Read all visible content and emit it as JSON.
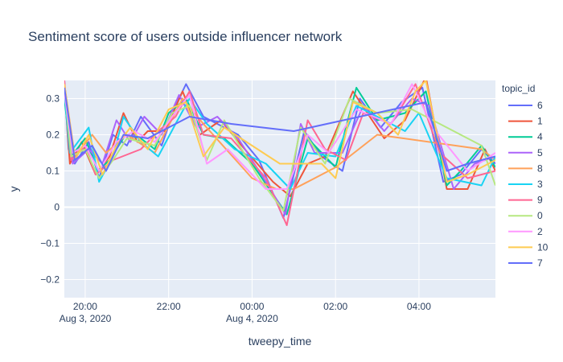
{
  "chart_data": {
    "type": "line",
    "title": "Sentiment score of users outside influencer network",
    "xlabel": "tweepy_time",
    "ylabel": "y",
    "x_range": [
      "2020-08-03 19:30",
      "2020-08-04 05:50"
    ],
    "ylim": [
      -0.25,
      0.35
    ],
    "x_ticks": [
      {
        "t": "2020-08-03 20:00",
        "label": "20:00",
        "date": "Aug 3, 2020"
      },
      {
        "t": "2020-08-03 22:00",
        "label": "22:00",
        "date": ""
      },
      {
        "t": "2020-08-04 00:00",
        "label": "00:00",
        "date": "Aug 4, 2020"
      },
      {
        "t": "2020-08-04 02:00",
        "label": "02:00",
        "date": ""
      },
      {
        "t": "2020-08-04 04:00",
        "label": "04:00",
        "date": ""
      }
    ],
    "y_ticks": [
      -0.2,
      -0.1,
      0,
      0.1,
      0.2,
      0.3
    ],
    "y_tick_labels": [
      "−0.2",
      "−0.1",
      "0",
      "0.1",
      "0.2",
      "0.3"
    ],
    "legend_title": "topic_id",
    "legend_position": "right",
    "grid": true,
    "series": [
      {
        "name": "6",
        "color": "#636efa",
        "points": [
          [
            "2020-08-03 19:30",
            0.35
          ],
          [
            "2020-08-03 19:36",
            0.16
          ],
          [
            "2020-08-03 19:45",
            0.12
          ],
          [
            "2020-08-03 20:05",
            0.18
          ],
          [
            "2020-08-03 20:20",
            0.08
          ],
          [
            "2020-08-03 20:40",
            0.2
          ],
          [
            "2020-08-03 21:00",
            0.17
          ],
          [
            "2020-08-03 21:20",
            0.25
          ],
          [
            "2020-08-03 21:50",
            0.17
          ],
          [
            "2020-08-03 22:10",
            0.28
          ],
          [
            "2020-08-03 22:25",
            0.34
          ],
          [
            "2020-08-03 22:50",
            0.25
          ],
          [
            "2020-08-03 23:10",
            0.23
          ],
          [
            "2020-08-03 23:40",
            0.2
          ],
          [
            "2020-08-04 00:10",
            0.13
          ],
          [
            "2020-08-04 00:45",
            -0.03
          ],
          [
            "2020-08-04 01:15",
            0.21
          ],
          [
            "2020-08-04 01:40",
            0.14
          ],
          [
            "2020-08-04 02:10",
            0.1
          ],
          [
            "2020-08-04 02:35",
            0.3
          ],
          [
            "2020-08-04 03:05",
            0.22
          ],
          [
            "2020-08-04 03:35",
            0.29
          ],
          [
            "2020-08-04 04:05",
            0.33
          ],
          [
            "2020-08-04 04:35",
            0.07
          ],
          [
            "2020-08-04 05:00",
            0.09
          ],
          [
            "2020-08-04 05:30",
            0.16
          ],
          [
            "2020-08-04 05:50",
            0.12
          ]
        ]
      },
      {
        "name": "1",
        "color": "#EF553B",
        "points": [
          [
            "2020-08-03 19:30",
            0.33
          ],
          [
            "2020-08-03 19:38",
            0.12
          ],
          [
            "2020-08-03 19:55",
            0.18
          ],
          [
            "2020-08-03 20:15",
            0.09
          ],
          [
            "2020-08-03 20:35",
            0.14
          ],
          [
            "2020-08-03 20:55",
            0.26
          ],
          [
            "2020-08-03 21:15",
            0.18
          ],
          [
            "2020-08-03 21:30",
            0.21
          ],
          [
            "2020-08-03 21:55",
            0.21
          ],
          [
            "2020-08-03 22:20",
            0.32
          ],
          [
            "2020-08-03 22:45",
            0.2
          ],
          [
            "2020-08-03 23:15",
            0.24
          ],
          [
            "2020-08-03 23:45",
            0.17
          ],
          [
            "2020-08-04 00:30",
            0.07
          ],
          [
            "2020-08-04 00:55",
            0.03
          ],
          [
            "2020-08-04 01:20",
            0.12
          ],
          [
            "2020-08-04 01:45",
            0.14
          ],
          [
            "2020-08-04 02:25",
            0.32
          ],
          [
            "2020-08-04 03:10",
            0.19
          ],
          [
            "2020-08-04 03:40",
            0.24
          ],
          [
            "2020-08-04 04:10",
            0.36
          ],
          [
            "2020-08-04 04:40",
            0.05
          ],
          [
            "2020-08-04 05:10",
            0.05
          ],
          [
            "2020-08-04 05:35",
            0.16
          ],
          [
            "2020-08-04 05:50",
            0.1
          ]
        ]
      },
      {
        "name": "4",
        "color": "#00cc96",
        "points": [
          [
            "2020-08-03 19:30",
            0.3
          ],
          [
            "2020-08-03 19:40",
            0.14
          ],
          [
            "2020-08-03 20:00",
            0.19
          ],
          [
            "2020-08-03 20:18",
            0.1
          ],
          [
            "2020-08-03 20:35",
            0.13
          ],
          [
            "2020-08-03 20:58",
            0.2
          ],
          [
            "2020-08-03 21:20",
            0.19
          ],
          [
            "2020-08-03 21:40",
            0.16
          ],
          [
            "2020-08-03 22:00",
            0.26
          ],
          [
            "2020-08-03 22:25",
            0.3
          ],
          [
            "2020-08-03 22:50",
            0.2
          ],
          [
            "2020-08-03 23:20",
            0.19
          ],
          [
            "2020-08-04 00:00",
            0.12
          ],
          [
            "2020-08-04 00:50",
            -0.02
          ],
          [
            "2020-08-04 01:20",
            0.19
          ],
          [
            "2020-08-04 02:00",
            0.11
          ],
          [
            "2020-08-04 02:30",
            0.33
          ],
          [
            "2020-08-04 03:00",
            0.24
          ],
          [
            "2020-08-04 03:40",
            0.26
          ],
          [
            "2020-08-04 04:10",
            0.32
          ],
          [
            "2020-08-04 04:40",
            0.06
          ],
          [
            "2020-08-04 05:00",
            0.1
          ],
          [
            "2020-08-04 05:30",
            0.17
          ],
          [
            "2020-08-04 05:50",
            0.11
          ]
        ]
      },
      {
        "name": "5",
        "color": "#ab63fa",
        "points": [
          [
            "2020-08-03 19:30",
            0.31
          ],
          [
            "2020-08-03 19:42",
            0.12
          ],
          [
            "2020-08-03 20:05",
            0.16
          ],
          [
            "2020-08-03 20:25",
            0.12
          ],
          [
            "2020-08-03 20:45",
            0.24
          ],
          [
            "2020-08-03 21:05",
            0.18
          ],
          [
            "2020-08-03 21:25",
            0.25
          ],
          [
            "2020-08-03 21:50",
            0.2
          ],
          [
            "2020-08-03 22:15",
            0.31
          ],
          [
            "2020-08-03 22:40",
            0.22
          ],
          [
            "2020-08-03 23:10",
            0.25
          ],
          [
            "2020-08-03 23:40",
            0.19
          ],
          [
            "2020-08-04 00:20",
            0.07
          ],
          [
            "2020-08-04 00:48",
            -0.02
          ],
          [
            "2020-08-04 01:10",
            0.23
          ],
          [
            "2020-08-04 01:30",
            0.15
          ],
          [
            "2020-08-04 02:10",
            0.15
          ],
          [
            "2020-08-04 02:40",
            0.28
          ],
          [
            "2020-08-04 03:10",
            0.21
          ],
          [
            "2020-08-04 03:50",
            0.3
          ],
          [
            "2020-08-04 04:15",
            0.28
          ],
          [
            "2020-08-04 04:50",
            0.05
          ],
          [
            "2020-08-04 05:20",
            0.12
          ],
          [
            "2020-08-04 05:50",
            0.14
          ]
        ]
      },
      {
        "name": "8",
        "color": "#FFA15A",
        "points": [
          [
            "2020-08-03 19:30",
            0.34
          ],
          [
            "2020-08-03 19:45",
            0.14
          ],
          [
            "2020-08-03 20:10",
            0.2
          ],
          [
            "2020-08-03 20:30",
            0.15
          ],
          [
            "2020-08-03 21:00",
            0.2
          ],
          [
            "2020-08-03 21:40",
            0.15
          ],
          [
            "2020-08-03 22:20",
            0.3
          ],
          [
            "2020-08-03 22:50",
            0.23
          ],
          [
            "2020-08-04 00:00",
            0.08
          ],
          [
            "2020-08-04 00:35",
            0.05
          ],
          [
            "2020-08-04 01:00",
            0.05
          ],
          [
            "2020-08-04 02:00",
            0.11
          ],
          [
            "2020-08-04 03:00",
            0.2
          ],
          [
            "2020-08-04 05:30",
            0.16
          ],
          [
            "2020-08-04 05:50",
            0.13
          ]
        ]
      },
      {
        "name": "3",
        "color": "#19d3f3",
        "points": [
          [
            "2020-08-03 19:30",
            0.32
          ],
          [
            "2020-08-03 19:38",
            0.15
          ],
          [
            "2020-08-03 20:05",
            0.22
          ],
          [
            "2020-08-03 20:20",
            0.07
          ],
          [
            "2020-08-03 20:40",
            0.14
          ],
          [
            "2020-08-03 20:55",
            0.25
          ],
          [
            "2020-08-03 21:20",
            0.18
          ],
          [
            "2020-08-03 21:45",
            0.14
          ],
          [
            "2020-08-03 22:10",
            0.23
          ],
          [
            "2020-08-03 22:30",
            0.3
          ],
          [
            "2020-08-03 22:55",
            0.23
          ],
          [
            "2020-08-03 23:35",
            0.16
          ],
          [
            "2020-08-04 00:20",
            0.12
          ],
          [
            "2020-08-04 00:55",
            0.05
          ],
          [
            "2020-08-04 01:20",
            0.15
          ],
          [
            "2020-08-04 02:00",
            0.14
          ],
          [
            "2020-08-04 02:30",
            0.28
          ],
          [
            "2020-08-04 03:40",
            0.21
          ],
          [
            "2020-08-04 04:00",
            0.26
          ],
          [
            "2020-08-04 04:40",
            0.08
          ],
          [
            "2020-08-04 05:30",
            0.06
          ],
          [
            "2020-08-04 05:50",
            0.14
          ]
        ]
      },
      {
        "name": "9",
        "color": "#FF6692",
        "points": [
          [
            "2020-08-03 19:30",
            0.35
          ],
          [
            "2020-08-03 19:40",
            0.13
          ],
          [
            "2020-08-03 20:00",
            0.17
          ],
          [
            "2020-08-03 20:15",
            0.09
          ],
          [
            "2020-08-03 20:40",
            0.13
          ],
          [
            "2020-08-03 21:20",
            0.16
          ],
          [
            "2020-08-03 21:45",
            0.21
          ],
          [
            "2020-08-03 22:10",
            0.25
          ],
          [
            "2020-08-03 22:30",
            0.32
          ],
          [
            "2020-08-03 22:50",
            0.2
          ],
          [
            "2020-08-03 23:30",
            0.19
          ],
          [
            "2020-08-04 00:20",
            0.08
          ],
          [
            "2020-08-04 00:50",
            -0.05
          ],
          [
            "2020-08-04 01:20",
            0.24
          ],
          [
            "2020-08-04 01:45",
            0.16
          ],
          [
            "2020-08-04 02:15",
            0.13
          ],
          [
            "2020-08-04 02:40",
            0.26
          ],
          [
            "2020-08-04 03:20",
            0.23
          ],
          [
            "2020-08-04 03:55",
            0.34
          ],
          [
            "2020-08-04 04:30",
            0.15
          ],
          [
            "2020-08-04 05:10",
            0.08
          ],
          [
            "2020-08-04 05:50",
            0.1
          ]
        ]
      },
      {
        "name": "0",
        "color": "#B6E880",
        "points": [
          [
            "2020-08-03 19:30",
            0.33
          ],
          [
            "2020-08-03 19:40",
            0.14
          ],
          [
            "2020-08-03 20:00",
            0.16
          ],
          [
            "2020-08-03 20:20",
            0.08
          ],
          [
            "2020-08-03 20:40",
            0.13
          ],
          [
            "2020-08-03 21:00",
            0.19
          ],
          [
            "2020-08-03 21:40",
            0.17
          ],
          [
            "2020-08-03 22:05",
            0.26
          ],
          [
            "2020-08-03 22:30",
            0.28
          ],
          [
            "2020-08-03 22:55",
            0.13
          ],
          [
            "2020-08-03 23:20",
            0.24
          ],
          [
            "2020-08-04 00:10",
            0.08
          ],
          [
            "2020-08-04 00:45",
            -0.01
          ],
          [
            "2020-08-04 01:10",
            0.22
          ],
          [
            "2020-08-04 01:45",
            0.12
          ],
          [
            "2020-08-04 02:20",
            0.3
          ],
          [
            "2020-08-04 03:00",
            0.26
          ],
          [
            "2020-08-04 03:50",
            0.27
          ],
          [
            "2020-08-04 04:20",
            0.24
          ],
          [
            "2020-08-04 05:30",
            0.17
          ],
          [
            "2020-08-04 05:50",
            0.06
          ]
        ]
      },
      {
        "name": "2",
        "color": "#FF97FF",
        "points": [
          [
            "2020-08-03 19:30",
            0.32
          ],
          [
            "2020-08-03 19:42",
            0.15
          ],
          [
            "2020-08-03 20:00",
            0.17
          ],
          [
            "2020-08-03 20:20",
            0.1
          ],
          [
            "2020-08-03 20:45",
            0.18
          ],
          [
            "2020-08-03 21:10",
            0.21
          ],
          [
            "2020-08-03 21:40",
            0.18
          ],
          [
            "2020-08-03 22:05",
            0.25
          ],
          [
            "2020-08-03 22:30",
            0.31
          ],
          [
            "2020-08-03 22:55",
            0.12
          ],
          [
            "2020-08-03 23:25",
            0.16
          ],
          [
            "2020-08-04 00:20",
            0.05
          ],
          [
            "2020-08-04 00:50",
            0.05
          ],
          [
            "2020-08-04 01:20",
            0.2
          ],
          [
            "2020-08-04 01:50",
            0.15
          ],
          [
            "2020-08-04 02:30",
            0.27
          ],
          [
            "2020-08-04 03:20",
            0.23
          ],
          [
            "2020-08-04 03:50",
            0.34
          ],
          [
            "2020-08-04 04:20",
            0.22
          ],
          [
            "2020-08-04 05:10",
            0.1
          ],
          [
            "2020-08-04 05:50",
            0.15
          ]
        ]
      },
      {
        "name": "10",
        "color": "#FECB52",
        "points": [
          [
            "2020-08-03 19:30",
            0.34
          ],
          [
            "2020-08-03 19:45",
            0.13
          ],
          [
            "2020-08-03 20:05",
            0.2
          ],
          [
            "2020-08-03 20:25",
            0.09
          ],
          [
            "2020-08-03 20:45",
            0.17
          ],
          [
            "2020-08-03 21:05",
            0.22
          ],
          [
            "2020-08-03 21:30",
            0.16
          ],
          [
            "2020-08-03 22:00",
            0.27
          ],
          [
            "2020-08-03 22:25",
            0.29
          ],
          [
            "2020-08-03 22:50",
            0.14
          ],
          [
            "2020-08-03 23:20",
            0.22
          ],
          [
            "2020-08-04 00:40",
            0.12
          ],
          [
            "2020-08-04 01:40",
            0.12
          ],
          [
            "2020-08-04 02:00",
            0.08
          ],
          [
            "2020-08-04 02:25",
            0.29
          ],
          [
            "2020-08-04 03:00",
            0.26
          ],
          [
            "2020-08-04 03:30",
            0.2
          ],
          [
            "2020-08-04 03:55",
            0.32
          ],
          [
            "2020-08-04 04:10",
            0.35
          ],
          [
            "2020-08-04 04:40",
            0.07
          ],
          [
            "2020-08-04 05:10",
            0.09
          ],
          [
            "2020-08-04 05:50",
            0.13
          ]
        ]
      },
      {
        "name": "7",
        "color": "#636efa",
        "points": [
          [
            "2020-08-03 19:30",
            0.33
          ],
          [
            "2020-08-03 19:45",
            0.13
          ],
          [
            "2020-08-03 20:10",
            0.17
          ],
          [
            "2020-08-03 20:30",
            0.1
          ],
          [
            "2020-08-03 20:55",
            0.2
          ],
          [
            "2020-08-03 21:30",
            0.19
          ],
          [
            "2020-08-03 22:30",
            0.25
          ],
          [
            "2020-08-03 23:30",
            0.23
          ],
          [
            "2020-08-04 01:00",
            0.21
          ],
          [
            "2020-08-04 04:10",
            0.29
          ],
          [
            "2020-08-04 04:40",
            0.1
          ],
          [
            "2020-08-04 05:10",
            0.12
          ],
          [
            "2020-08-04 05:50",
            0.14
          ]
        ]
      }
    ]
  }
}
